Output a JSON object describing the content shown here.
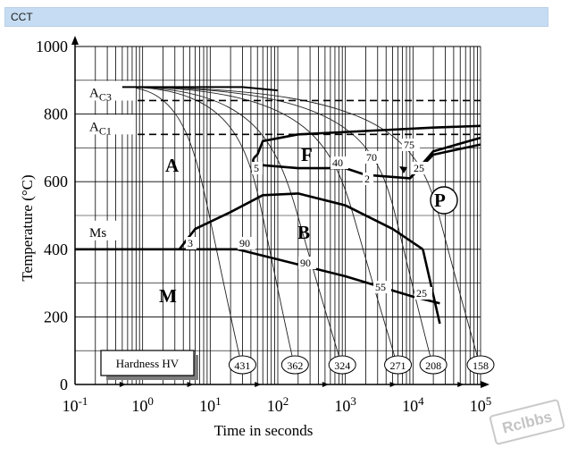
{
  "header": {
    "title": "CCT"
  },
  "chart_data": {
    "type": "line",
    "title": "",
    "xlabel": "Time in seconds",
    "ylabel": "Temperature (°C)",
    "x_scale": "log",
    "xlim": [
      0.1,
      100000
    ],
    "ylim": [
      0,
      1000
    ],
    "grid": true,
    "x_tick_labels": [
      "10-1",
      "100",
      "101",
      "102",
      "103",
      "104",
      "105"
    ],
    "y_ticks": [
      0,
      200,
      400,
      600,
      800,
      1000
    ],
    "reference_lines": [
      {
        "label": "AC3",
        "y": 840
      },
      {
        "label": "AC1",
        "y": 740
      }
    ],
    "ms_line": {
      "label": "Ms",
      "y": 400,
      "x": [
        0.1,
        25
      ]
    },
    "regions": [
      "A",
      "F",
      "B",
      "M",
      "P"
    ],
    "phase_boundaries": [
      {
        "name": "ferrite start",
        "points": [
          [
            50,
            680
          ],
          [
            60,
            720
          ],
          [
            200,
            740
          ],
          [
            2000,
            750
          ],
          [
            20000,
            760
          ],
          [
            100000,
            765
          ]
        ]
      },
      {
        "name": "ferrite finish",
        "points": [
          [
            50,
            650
          ],
          [
            200,
            640
          ],
          [
            1000,
            640
          ],
          [
            2000,
            620
          ],
          [
            9000,
            610
          ],
          [
            20000,
            680
          ],
          [
            100000,
            710
          ]
        ]
      },
      {
        "name": "pearlite finish",
        "points": [
          [
            9000,
            610
          ],
          [
            20000,
            690
          ],
          [
            100000,
            730
          ]
        ]
      },
      {
        "name": "bainite start",
        "points": [
          [
            3.5,
            400
          ],
          [
            6,
            460
          ],
          [
            20,
            510
          ],
          [
            60,
            560
          ],
          [
            200,
            565
          ],
          [
            1000,
            530
          ],
          [
            5000,
            460
          ],
          [
            14000,
            400
          ]
        ]
      },
      {
        "name": "bainite finish",
        "points": [
          [
            25,
            400
          ],
          [
            1000,
            320
          ],
          [
            10000,
            260
          ],
          [
            25000,
            240
          ]
        ]
      },
      {
        "name": "bainite end tail",
        "points": [
          [
            14000,
            400
          ],
          [
            25000,
            180
          ]
        ]
      }
    ],
    "cooling_curves": [
      {
        "hardness": 431,
        "start": 4,
        "end": 30
      },
      {
        "hardness": 362,
        "start": 25,
        "end": 180
      },
      {
        "hardness": 324,
        "start": 60,
        "end": 900
      },
      {
        "hardness": 271,
        "start": 400,
        "end": 6000
      },
      {
        "hardness": 208,
        "start": 2000,
        "end": 20000
      },
      {
        "hardness": 158,
        "start": 8000,
        "end": 100000
      }
    ],
    "curve_annotations": [
      "5",
      "40",
      "70",
      "75",
      "2",
      "25",
      "3",
      "90",
      "90",
      "55",
      "25"
    ],
    "hardness_box": {
      "label": "Hardness HV",
      "values": [
        431,
        362,
        324,
        271,
        208,
        158
      ]
    }
  },
  "watermark": "Rclbbs"
}
